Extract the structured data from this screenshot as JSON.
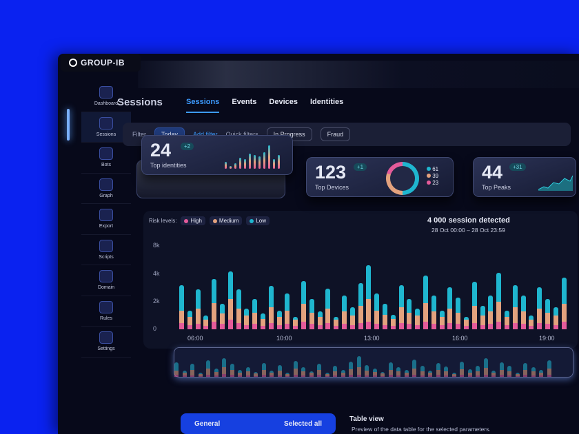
{
  "brand": "GROUP-IB",
  "sidebar": {
    "items": [
      {
        "label": "Dashboard"
      },
      {
        "label": "Sessions"
      },
      {
        "label": "Bots"
      },
      {
        "label": "Graph"
      },
      {
        "label": "Export"
      },
      {
        "label": "Scripts"
      },
      {
        "label": "Domain"
      },
      {
        "label": "Rules"
      },
      {
        "label": "Settings"
      }
    ]
  },
  "header": {
    "title": "Sessions",
    "tabs": [
      "Sessions",
      "Events",
      "Devices",
      "Identities"
    ]
  },
  "filters": {
    "label": "Filter",
    "today": "Today",
    "add": "Add filter",
    "quick": "Quick filters",
    "chips": [
      "In Progress",
      "Fraud"
    ]
  },
  "cards": [
    {
      "value": "24",
      "delta": "+2",
      "label": "Top identities"
    },
    {
      "value": "123",
      "delta": "+1",
      "label": "Top Devices",
      "legend": [
        "61",
        "39",
        "23"
      ]
    },
    {
      "value": "44",
      "delta": "+31",
      "label": "Top Peaks"
    }
  ],
  "colors": {
    "high": "#e45b9a",
    "medium": "#e3a27e",
    "low": "#1fb6cf",
    "accent": "#3d9bff"
  },
  "chart_data": {
    "type": "bar",
    "stacked": true,
    "title": "4 000 session detected",
    "subtitle": "28 Oct 00:00 – 28 Oct 23:59",
    "legend_label": "Risk levels:",
    "legend": [
      "High",
      "Medium",
      "Low"
    ],
    "yticks": [
      "0",
      "2k",
      "4k",
      "8k"
    ],
    "ylim": [
      0,
      8000
    ],
    "xticks": [
      "06:00",
      "10:00",
      "13:00",
      "16:00",
      "19:00"
    ],
    "series": [
      {
        "name": "High",
        "values": [
          600,
          400,
          500,
          300,
          700,
          500,
          900,
          600,
          400,
          500,
          300,
          600,
          400,
          500,
          300,
          700,
          500,
          400,
          600,
          300,
          500,
          400,
          600,
          700,
          500,
          400,
          300,
          600,
          500,
          400,
          700,
          500,
          400,
          600,
          500,
          300,
          600,
          400,
          500,
          700,
          400,
          600,
          500,
          300,
          600,
          500,
          400,
          700
        ]
      },
      {
        "name": "Medium",
        "values": [
          1200,
          800,
          1500,
          600,
          1800,
          1000,
          2000,
          1400,
          900,
          1100,
          700,
          1500,
          800,
          1300,
          600,
          1700,
          1100,
          800,
          1400,
          600,
          1200,
          900,
          1600,
          2200,
          1300,
          1000,
          700,
          1500,
          1100,
          900,
          1800,
          1200,
          800,
          1400,
          1100,
          600,
          1600,
          900,
          1200,
          1900,
          800,
          1500,
          1200,
          600,
          1400,
          1100,
          900,
          1700
        ]
      },
      {
        "name": "Low",
        "values": [
          2400,
          600,
          1800,
          400,
          2300,
          900,
          2600,
          1800,
          700,
          1300,
          500,
          2000,
          600,
          1600,
          300,
          2200,
          1300,
          500,
          1900,
          300,
          1500,
          800,
          2200,
          3200,
          1600,
          1000,
          400,
          2100,
          1300,
          700,
          2600,
          1500,
          600,
          2000,
          1400,
          300,
          2300,
          900,
          1500,
          2800,
          600,
          2100,
          1500,
          400,
          2000,
          1300,
          800,
          2500
        ]
      }
    ]
  },
  "bottom": {
    "general": "General",
    "selected": "Selected all",
    "table_title": "Table view",
    "table_desc": "Preview of the data table for the selected parameters."
  }
}
